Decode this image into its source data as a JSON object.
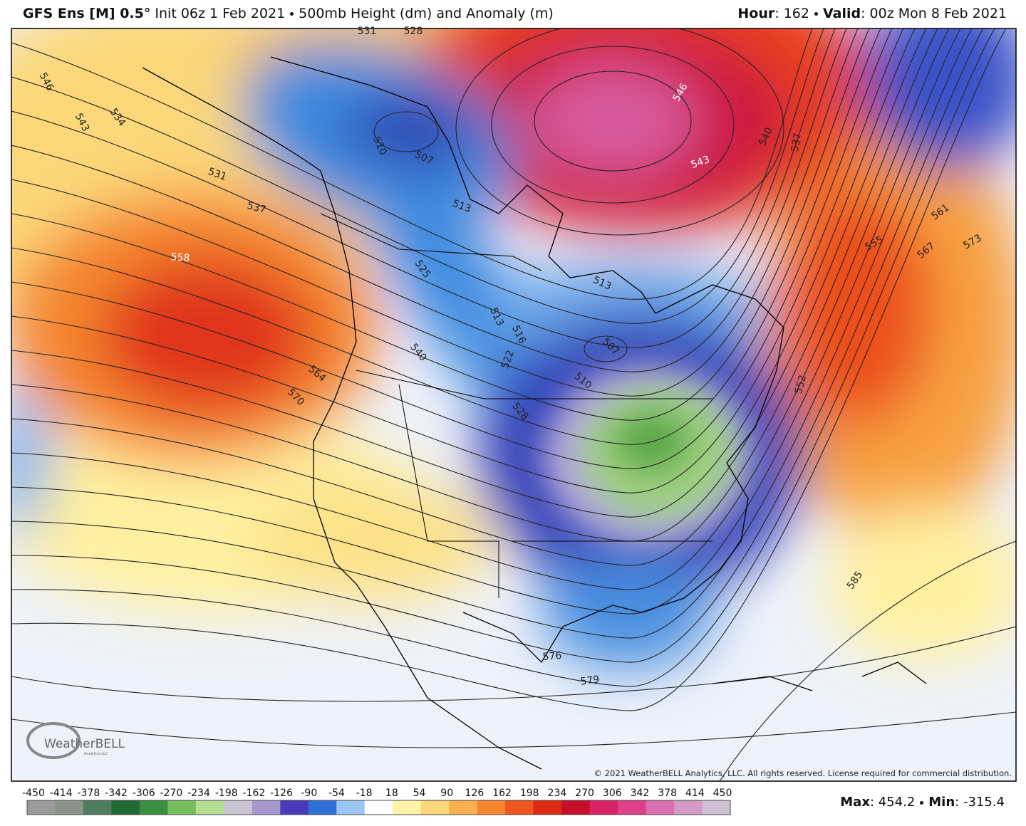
{
  "title": {
    "model": "GFS Ens [M] 0.5°",
    "init": "Init 06z 1 Feb 2021",
    "field": "500mb Height (dm) and Anomaly (m)"
  },
  "valid": {
    "hour_label": "Hour",
    "hour": "162",
    "valid_label": "Valid",
    "valid": "00z Mon 8 Feb 2021"
  },
  "stats": {
    "max_label": "Max",
    "max": 454.2,
    "min_label": "Min",
    "min": -315.4
  },
  "copyright": "© 2021 WeatherBELL Analytics, LLC. All rights reserved. License required for commercial distribution.",
  "logo": {
    "name": "WeatherBELL",
    "sub": "Analytics LLC"
  },
  "colorbar": {
    "ticks": [
      -450,
      -414,
      -378,
      -342,
      -306,
      -270,
      -234,
      -198,
      -162,
      -126,
      -90,
      -54,
      -18,
      18,
      54,
      90,
      126,
      162,
      198,
      234,
      270,
      306,
      342,
      378,
      414,
      450
    ],
    "colors": [
      "#9b9b9b",
      "#8a9289",
      "#4d7c5f",
      "#1f6b33",
      "#3b8f42",
      "#76bd5e",
      "#b4df93",
      "#c9c5d3",
      "#a898cf",
      "#4a3ab8",
      "#2f6fd6",
      "#9cc6f2",
      "#ffffff",
      "#fff3a8",
      "#fcd87a",
      "#f9b04e",
      "#f5862e",
      "#ee5520",
      "#dd2a14",
      "#c40e2a",
      "#d82464",
      "#e0408a",
      "#d86fae",
      "#d59ac5",
      "#cfc0d6"
    ]
  },
  "contour_labels": [
    546,
    543,
    534,
    531,
    537,
    558,
    564,
    570,
    531,
    528,
    510,
    507,
    513,
    525,
    540,
    513,
    516,
    522,
    528,
    513,
    507,
    510,
    546,
    543,
    540,
    537,
    561,
    555,
    567,
    573,
    552,
    585,
    576,
    579
  ]
}
